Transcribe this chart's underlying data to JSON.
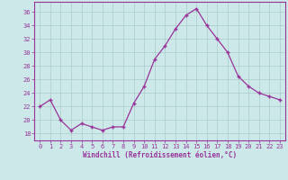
{
  "x": [
    0,
    1,
    2,
    3,
    4,
    5,
    6,
    7,
    8,
    9,
    10,
    11,
    12,
    13,
    14,
    15,
    16,
    17,
    18,
    19,
    20,
    21,
    22,
    23
  ],
  "y": [
    22.0,
    23.0,
    20.0,
    18.5,
    19.5,
    19.0,
    18.5,
    19.0,
    19.0,
    22.5,
    25.0,
    29.0,
    31.0,
    33.5,
    35.5,
    36.5,
    34.0,
    32.0,
    30.0,
    26.5,
    25.0,
    24.0,
    23.5,
    23.0
  ],
  "line_color": "#993399",
  "marker": "+",
  "marker_size": 3.5,
  "marker_lw": 1.0,
  "bg_color": "#cce8e8",
  "grid_color": "#aacccc",
  "xlabel": "Windchill (Refroidissement éolien,°C)",
  "xlabel_color": "#993399",
  "ylabel_ticks": [
    18,
    20,
    22,
    24,
    26,
    28,
    30,
    32,
    34,
    36
  ],
  "ylim": [
    17.0,
    37.5
  ],
  "xlim": [
    -0.5,
    23.5
  ],
  "tick_color": "#993399",
  "border_color": "#993399",
  "line_width": 0.9,
  "tick_fontsize": 5.0,
  "xlabel_fontsize": 5.5
}
